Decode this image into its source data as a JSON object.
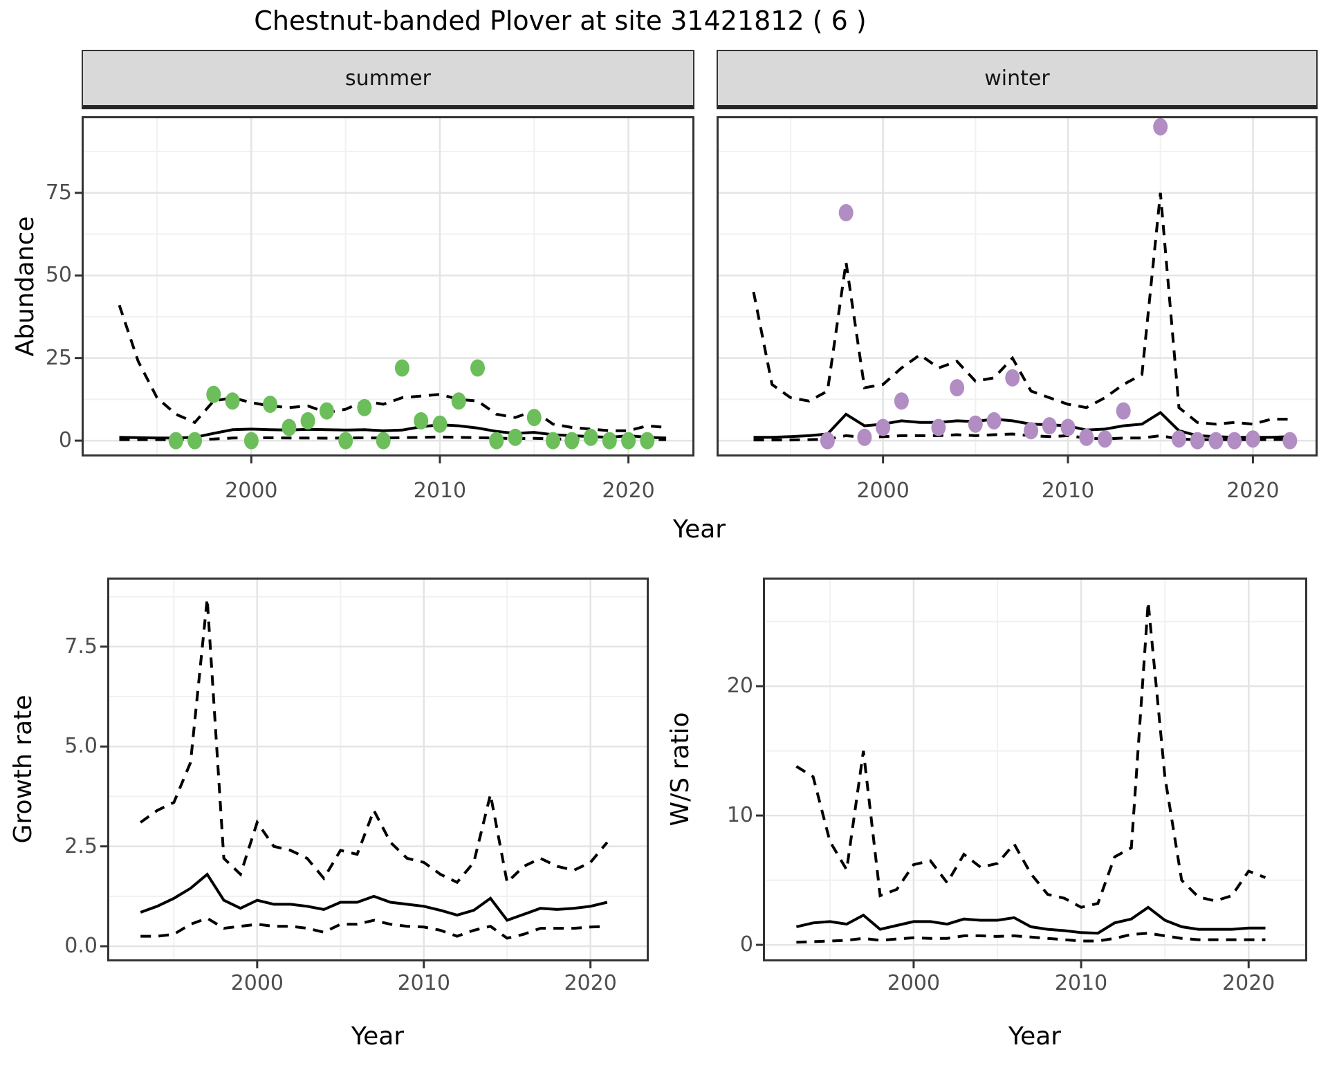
{
  "title": "Chestnut-banded Plover at site 31421812 ( 6 )",
  "x_label": "Year",
  "colors": {
    "summer_point": "#6CBE5B",
    "winter_point": "#B18DC4",
    "line": "#000000",
    "strip_bg": "#D9D9D9",
    "panel_border": "#333333",
    "grid_major": "#E4E4E4",
    "grid_minor": "#F1F1F1",
    "tick_text": "#4D4D4D"
  },
  "chart_data": [
    {
      "name": "abundance_summer",
      "type": "line",
      "facet": "summer",
      "ylabel": "Abundance",
      "xlim": [
        1991,
        2023.5
      ],
      "xticks": [
        "2000",
        "2010",
        "2020"
      ],
      "xtick_values": [
        2000,
        2010,
        2020
      ],
      "xminor_values": [
        1995,
        2005,
        2015
      ],
      "yticks": [
        "0",
        "25",
        "50",
        "75"
      ],
      "ytick_values": [
        0,
        25,
        50,
        75
      ],
      "yminor_values": [
        12.5,
        37.5,
        62.5,
        87.5
      ],
      "years": [
        1993,
        1994,
        1995,
        1996,
        1997,
        1998,
        1999,
        2000,
        2001,
        2002,
        2003,
        2004,
        2005,
        2006,
        2007,
        2008,
        2009,
        2010,
        2011,
        2012,
        2013,
        2014,
        2015,
        2016,
        2017,
        2018,
        2019,
        2020,
        2021,
        2022
      ],
      "series": [
        {
          "name": "median",
          "style": "solid",
          "values": [
            1.0,
            0.9,
            0.8,
            0.8,
            1.0,
            2.2,
            3.3,
            3.5,
            3.3,
            3.2,
            3.4,
            3.3,
            3.2,
            3.3,
            3.0,
            3.2,
            4.2,
            4.8,
            4.5,
            3.8,
            2.8,
            2.2,
            2.5,
            1.8,
            1.5,
            1.2,
            1.0,
            1.5,
            1.0,
            0.8
          ]
        },
        {
          "name": "upper_ci",
          "style": "dashed",
          "values": [
            41,
            24,
            13,
            8,
            5.5,
            12,
            13,
            11.5,
            10.5,
            10,
            10.5,
            8.5,
            9.5,
            12,
            11,
            13,
            13.5,
            14,
            12.5,
            12,
            8,
            7,
            9,
            5,
            4,
            3.5,
            3,
            3,
            4.5,
            4
          ]
        },
        {
          "name": "lower_ci",
          "style": "dashed",
          "values": [
            0.3,
            0.3,
            0.3,
            0.3,
            0.35,
            0.5,
            0.8,
            0.9,
            0.85,
            0.8,
            0.8,
            0.75,
            0.8,
            0.85,
            0.8,
            0.9,
            1.0,
            1.1,
            1.0,
            0.9,
            0.8,
            0.6,
            0.7,
            0.5,
            0.45,
            0.4,
            0.35,
            0.4,
            0.3,
            0.3
          ]
        }
      ],
      "points": {
        "color_key": "summer_point",
        "years": [
          1996,
          1997,
          1998,
          1999,
          2000,
          2001,
          2002,
          2003,
          2004,
          2005,
          2006,
          2007,
          2008,
          2009,
          2010,
          2011,
          2012,
          2013,
          2014,
          2015,
          2016,
          2017,
          2018,
          2019,
          2020,
          2021
        ],
        "values": [
          0,
          0,
          14,
          12,
          0,
          11,
          4,
          6,
          9,
          0,
          10,
          0,
          22,
          6,
          5,
          12,
          22,
          0,
          1,
          7,
          0,
          0,
          1,
          0,
          0,
          0
        ]
      }
    },
    {
      "name": "abundance_winter",
      "type": "line",
      "facet": "winter",
      "ylabel": "Abundance",
      "xlim": [
        1991,
        2023.5
      ],
      "xticks": [
        "2000",
        "2010",
        "2020"
      ],
      "xtick_values": [
        2000,
        2010,
        2020
      ],
      "xminor_values": [
        1995,
        2005,
        2015
      ],
      "yticks": [],
      "ytick_values": [
        0,
        25,
        50,
        75
      ],
      "yminor_values": [
        12.5,
        37.5,
        62.5,
        87.5
      ],
      "years": [
        1993,
        1994,
        1995,
        1996,
        1997,
        1998,
        1999,
        2000,
        2001,
        2002,
        2003,
        2004,
        2005,
        2006,
        2007,
        2008,
        2009,
        2010,
        2011,
        2012,
        2013,
        2014,
        2015,
        2016,
        2017,
        2018,
        2019,
        2020,
        2021,
        2022
      ],
      "series": [
        {
          "name": "median",
          "style": "solid",
          "values": [
            1.0,
            1.0,
            1.2,
            1.5,
            2.0,
            8.0,
            4.5,
            5.0,
            6.0,
            5.5,
            5.5,
            6.0,
            5.8,
            6.5,
            6.0,
            5.0,
            4.8,
            4.5,
            3.2,
            3.5,
            4.5,
            5.0,
            8.5,
            3.0,
            1.5,
            1.2,
            1.0,
            1.0,
            1.0,
            1.2
          ]
        },
        {
          "name": "upper_ci",
          "style": "dashed",
          "values": [
            45,
            17,
            13,
            12,
            15,
            54,
            16,
            17,
            22,
            26,
            22,
            24,
            18,
            19,
            25,
            15,
            13,
            11,
            10,
            13,
            17,
            20,
            75,
            10,
            5.5,
            5,
            5.5,
            5,
            6.5,
            6.5
          ]
        },
        {
          "name": "lower_ci",
          "style": "dashed",
          "values": [
            0.2,
            0.2,
            0.2,
            0.3,
            0.4,
            1.5,
            1.0,
            1.2,
            1.5,
            1.5,
            1.5,
            1.8,
            1.5,
            1.8,
            2.0,
            1.5,
            1.2,
            1.5,
            0.8,
            0.5,
            0.8,
            0.8,
            1.5,
            0.5,
            0.3,
            0.3,
            0.3,
            0.3,
            0.3,
            0.4
          ]
        }
      ],
      "points": {
        "color_key": "winter_point",
        "years": [
          1997,
          1998,
          1999,
          2000,
          2001,
          2003,
          2004,
          2005,
          2006,
          2007,
          2008,
          2009,
          2010,
          2011,
          2012,
          2013,
          2015,
          2016,
          2017,
          2018,
          2019,
          2020,
          2022
        ],
        "values": [
          0,
          69,
          1,
          4,
          12,
          4,
          16,
          5,
          6,
          19,
          3,
          4.5,
          4,
          1,
          0.5,
          9,
          95,
          0.5,
          0,
          0,
          0,
          0.5,
          0
        ]
      }
    },
    {
      "name": "growth_rate",
      "type": "line",
      "facet": "",
      "ylabel": "Growth rate",
      "xlim": [
        1991,
        2023.5
      ],
      "xticks": [
        "2000",
        "2010",
        "2020"
      ],
      "xtick_values": [
        2000,
        2010,
        2020
      ],
      "xminor_values": [
        1995,
        2005,
        2015
      ],
      "yticks": [
        "0.0",
        "2.5",
        "5.0",
        "7.5"
      ],
      "ytick_values": [
        0,
        2.5,
        5,
        7.5
      ],
      "yminor_values": [
        1.25,
        3.75,
        6.25,
        8.75
      ],
      "years": [
        1993,
        1994,
        1995,
        1996,
        1997,
        1998,
        1999,
        2000,
        2001,
        2002,
        2003,
        2004,
        2005,
        2006,
        2007,
        2008,
        2009,
        2010,
        2011,
        2012,
        2013,
        2014,
        2015,
        2016,
        2017,
        2018,
        2019,
        2020,
        2021
      ],
      "series": [
        {
          "name": "median",
          "style": "solid",
          "values": [
            0.85,
            1.0,
            1.2,
            1.45,
            1.8,
            1.15,
            0.95,
            1.15,
            1.05,
            1.05,
            1.0,
            0.92,
            1.1,
            1.1,
            1.25,
            1.1,
            1.05,
            1.0,
            0.9,
            0.78,
            0.9,
            1.2,
            0.65,
            0.8,
            0.95,
            0.92,
            0.95,
            1.0,
            1.1
          ]
        },
        {
          "name": "upper_ci",
          "style": "dashed",
          "values": [
            3.1,
            3.4,
            3.6,
            4.6,
            8.7,
            2.2,
            1.8,
            3.1,
            2.5,
            2.4,
            2.2,
            1.7,
            2.4,
            2.3,
            3.4,
            2.6,
            2.2,
            2.1,
            1.8,
            1.6,
            2.1,
            3.8,
            1.6,
            2.0,
            2.2,
            2.0,
            1.9,
            2.1,
            2.6
          ]
        },
        {
          "name": "lower_ci",
          "style": "dashed",
          "values": [
            0.25,
            0.25,
            0.3,
            0.55,
            0.7,
            0.45,
            0.5,
            0.55,
            0.5,
            0.5,
            0.45,
            0.35,
            0.55,
            0.55,
            0.65,
            0.55,
            0.5,
            0.48,
            0.4,
            0.25,
            0.4,
            0.5,
            0.2,
            0.3,
            0.45,
            0.45,
            0.45,
            0.48,
            0.5
          ]
        }
      ],
      "points": null
    },
    {
      "name": "ws_ratio",
      "type": "line",
      "facet": "",
      "ylabel": "W/S ratio",
      "xlim": [
        1991,
        2023.5
      ],
      "xticks": [
        "2000",
        "2010",
        "2020"
      ],
      "xtick_values": [
        2000,
        2010,
        2020
      ],
      "xminor_values": [
        1995,
        2005,
        2015
      ],
      "yticks": [
        "0",
        "10",
        "20"
      ],
      "ytick_values": [
        0,
        10,
        20
      ],
      "yminor_values": [
        5,
        15,
        25
      ],
      "years": [
        1993,
        1994,
        1995,
        1996,
        1997,
        1998,
        1999,
        2000,
        2001,
        2002,
        2003,
        2004,
        2005,
        2006,
        2007,
        2008,
        2009,
        2010,
        2011,
        2012,
        2013,
        2014,
        2015,
        2016,
        2017,
        2018,
        2019,
        2020,
        2021
      ],
      "series": [
        {
          "name": "median",
          "style": "solid",
          "values": [
            1.4,
            1.7,
            1.8,
            1.6,
            2.3,
            1.2,
            1.5,
            1.8,
            1.8,
            1.6,
            2.0,
            1.9,
            1.9,
            2.1,
            1.4,
            1.2,
            1.1,
            0.95,
            0.9,
            1.7,
            2.0,
            2.9,
            1.9,
            1.4,
            1.2,
            1.2,
            1.2,
            1.3,
            1.3
          ]
        },
        {
          "name": "upper_ci",
          "style": "dashed",
          "values": [
            13.8,
            13.0,
            8.0,
            5.8,
            15.0,
            3.8,
            4.3,
            6.2,
            6.5,
            4.8,
            7.0,
            6.0,
            6.3,
            7.8,
            5.5,
            3.9,
            3.6,
            2.9,
            3.2,
            6.8,
            7.5,
            26.5,
            13.0,
            5.0,
            3.7,
            3.4,
            3.8,
            5.7,
            5.2
          ]
        },
        {
          "name": "lower_ci",
          "style": "dashed",
          "values": [
            0.2,
            0.25,
            0.3,
            0.35,
            0.5,
            0.35,
            0.45,
            0.55,
            0.5,
            0.5,
            0.7,
            0.7,
            0.65,
            0.7,
            0.6,
            0.5,
            0.4,
            0.3,
            0.3,
            0.5,
            0.8,
            0.9,
            0.7,
            0.5,
            0.4,
            0.4,
            0.4,
            0.4,
            0.4
          ]
        }
      ],
      "points": null
    }
  ]
}
